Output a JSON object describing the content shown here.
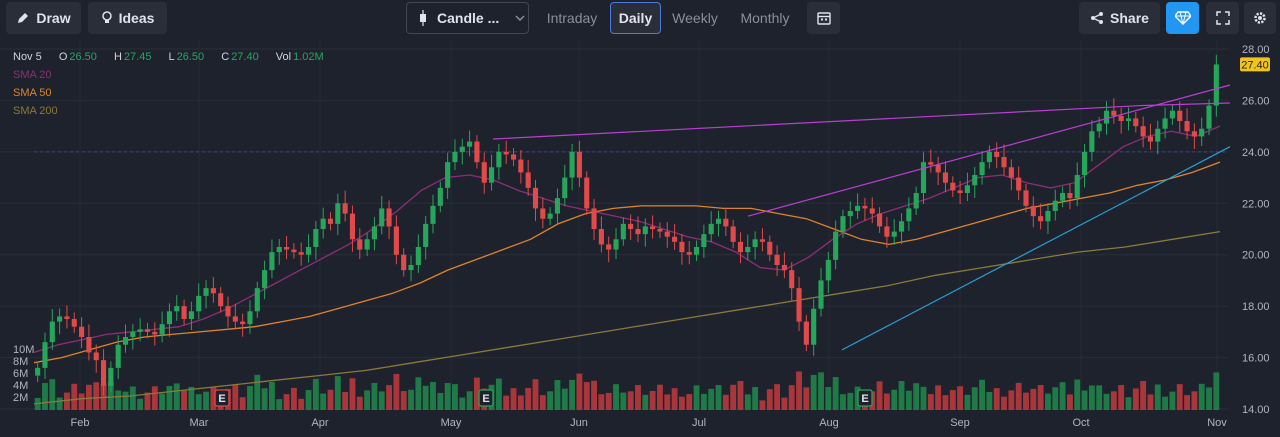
{
  "toolbar": {
    "draw_label": "Draw",
    "ideas_label": "Ideas",
    "chart_type_label": "Candle ...",
    "timeframes": [
      "Intraday",
      "Daily",
      "Weekly",
      "Monthly"
    ],
    "active_timeframe": "Daily",
    "share_label": "Share"
  },
  "legend": {
    "date": "Nov 5",
    "o_key": "O",
    "o_val": "26.50",
    "h_key": "H",
    "h_val": "27.45",
    "l_key": "L",
    "l_val": "26.50",
    "c_key": "C",
    "c_val": "27.40",
    "vol_key": "Vol",
    "vol_val": "1.02M",
    "sma20": "SMA 20",
    "sma50": "SMA 50",
    "sma200": "SMA 200"
  },
  "colors": {
    "background": "#1e222d",
    "up": "#26a65b",
    "down": "#e04a4a",
    "sma20": "#8e2e77",
    "sma50": "#e0832a",
    "sma200": "#8a7a3c",
    "trend_purple": "#b93fd1",
    "trend_blue": "#2a9fd6",
    "last_price_bg": "#f0c419"
  },
  "chart_data": {
    "type": "candlestick",
    "last_price_label": "27.40",
    "y_ticks": [
      "28.00",
      "26.00",
      "24.00",
      "22.00",
      "20.00",
      "18.00",
      "16.00",
      "14.00"
    ],
    "ylim": [
      14,
      28
    ],
    "volume_ticks": [
      "10M",
      "8M",
      "6M",
      "4M",
      "2M"
    ],
    "x_ticks": [
      "Feb",
      "Mar",
      "Apr",
      "May",
      "Jun",
      "Jul",
      "Aug",
      "Sep",
      "Oct",
      "Nov"
    ],
    "earnings_markers": [
      {
        "label": "E",
        "month": "Mar",
        "color": "red"
      },
      {
        "label": "E",
        "month": "May",
        "color": "green"
      },
      {
        "label": "E",
        "month": "Aug",
        "color": "green"
      }
    ],
    "price_path": [
      15.6,
      16.6,
      17.4,
      17.6,
      17.5,
      17.2,
      16.8,
      16.2,
      15.9,
      14.9,
      15.6,
      16.5,
      16.8,
      17.0,
      17.1,
      17.0,
      16.9,
      17.3,
      17.8,
      18.0,
      17.5,
      17.8,
      18.4,
      18.7,
      18.5,
      18.0,
      17.6,
      17.4,
      17.3,
      17.8,
      18.7,
      19.4,
      20.1,
      20.3,
      20.2,
      20.1,
      20.0,
      20.3,
      21.0,
      21.4,
      21.2,
      22.0,
      21.6,
      20.6,
      20.2,
      20.6,
      21.1,
      21.8,
      21.1,
      20.0,
      19.4,
      19.6,
      20.3,
      21.2,
      21.9,
      22.6,
      23.6,
      24.0,
      24.2,
      24.4,
      23.6,
      22.8,
      23.4,
      24.0,
      23.9,
      23.7,
      23.2,
      22.6,
      21.8,
      21.4,
      21.6,
      22.2,
      23.0,
      24.0,
      23.0,
      21.8,
      21.0,
      20.4,
      20.2,
      20.6,
      21.2,
      21.0,
      20.8,
      21.1,
      21.0,
      20.9,
      20.7,
      20.5,
      20.1,
      20.0,
      20.3,
      20.8,
      21.2,
      21.4,
      21.1,
      20.5,
      20.1,
      20.3,
      20.6,
      20.5,
      20.0,
      19.6,
      19.4,
      18.7,
      17.4,
      16.5,
      17.9,
      19.0,
      19.8,
      20.9,
      21.5,
      21.7,
      21.9,
      21.8,
      21.6,
      21.1,
      20.7,
      20.9,
      21.3,
      21.8,
      22.4,
      23.6,
      23.5,
      23.2,
      22.8,
      22.5,
      22.4,
      22.7,
      23.1,
      23.6,
      24.0,
      23.8,
      23.4,
      23.0,
      22.5,
      21.9,
      21.5,
      21.3,
      21.7,
      22.1,
      22.4,
      22.2,
      23.1,
      24.0,
      24.8,
      25.1,
      25.6,
      25.4,
      25.2,
      25.3,
      25.0,
      24.6,
      24.4,
      24.9,
      25.3,
      25.6,
      25.2,
      24.8,
      24.6,
      24.9,
      25.8,
      27.4
    ],
    "sma20": [
      16.2,
      16.5,
      16.7,
      16.9,
      17.0,
      17.1,
      17.2,
      17.5,
      17.9,
      18.4,
      18.9,
      19.4,
      19.9,
      20.4,
      21.0,
      21.7,
      22.5,
      23.0,
      23.1,
      22.9,
      22.5,
      22.2,
      21.9,
      21.7,
      21.5,
      21.3,
      21.0,
      20.7,
      20.5,
      20.1,
      19.5,
      19.4,
      19.9,
      20.6,
      21.2,
      21.6,
      21.9,
      22.2,
      22.6,
      23.0,
      23.1,
      22.8,
      22.6,
      22.8,
      23.5,
      24.2,
      24.6,
      24.8,
      24.6,
      25.0
    ],
    "sma50": [
      15.8,
      16.0,
      16.3,
      16.6,
      16.8,
      16.9,
      17.0,
      17.1,
      17.2,
      17.4,
      17.6,
      17.9,
      18.2,
      18.5,
      18.9,
      19.4,
      19.8,
      20.2,
      20.6,
      21.2,
      21.6,
      21.8,
      21.9,
      21.9,
      21.9,
      21.8,
      21.8,
      21.6,
      21.4,
      21.0,
      20.6,
      20.4,
      20.6,
      20.9,
      21.2,
      21.5,
      21.8,
      22.0,
      22.2,
      22.4,
      22.7,
      22.9,
      23.2,
      23.6
    ],
    "sma200": [
      14.2,
      14.4,
      14.5,
      14.7,
      14.9,
      15.1,
      15.3,
      15.5,
      15.8,
      16.1,
      16.4,
      16.7,
      17.0,
      17.3,
      17.6,
      17.9,
      18.2,
      18.5,
      18.8,
      19.2,
      19.5,
      19.8,
      20.1,
      20.3,
      20.6,
      20.9
    ],
    "trendlines": [
      {
        "color": "purple",
        "from": {
          "month": "May",
          "value": 24.5
        },
        "to": {
          "month": "Oct",
          "value": 25.8
        }
      },
      {
        "color": "purple",
        "from": {
          "month": "Jul",
          "value": 21.5
        },
        "to": {
          "month": "Nov",
          "value": 26.6
        }
      },
      {
        "color": "blue",
        "from": {
          "month": "Aug",
          "value": 16.3
        },
        "to": {
          "month": "Nov",
          "value": 24.2
        }
      }
    ],
    "horizontal_line": 24.0
  }
}
